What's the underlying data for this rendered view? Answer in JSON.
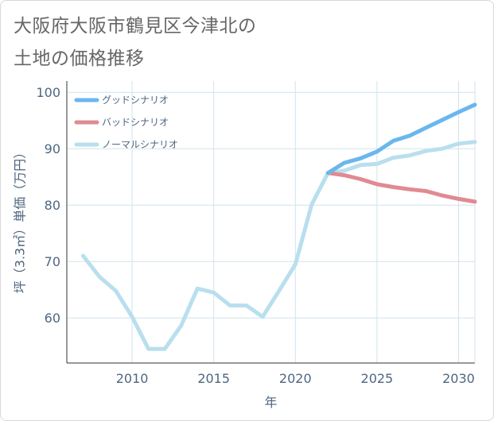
{
  "title_lines": [
    "大阪府大阪市鶴見区今津北の",
    "土地の価格推移"
  ],
  "chart_data": {
    "type": "line",
    "title": "大阪府大阪市鶴見区今津北の土地の価格推移",
    "xlabel": "年",
    "ylabel": "坪（3.3㎡）単価（万円）",
    "xlim": [
      2006,
      2031
    ],
    "ylim": [
      52,
      102
    ],
    "xticks": [
      2010,
      2015,
      2020,
      2025,
      2030
    ],
    "yticks": [
      60,
      70,
      80,
      90,
      100
    ],
    "grid": true,
    "legend_position": "top-left",
    "series": [
      {
        "name": "グッドシナリオ",
        "color": "#6ab7ee",
        "x": [
          2022,
          2023,
          2024,
          2025,
          2026,
          2027,
          2028,
          2029,
          2030,
          2031
        ],
        "y": [
          85.7,
          87.5,
          88.3,
          89.5,
          91.4,
          92.3,
          93.7,
          95.1,
          96.5,
          97.8
        ]
      },
      {
        "name": "バッドシナリオ",
        "color": "#e08a92",
        "x": [
          2022,
          2023,
          2024,
          2025,
          2026,
          2027,
          2028,
          2029,
          2030,
          2031
        ],
        "y": [
          85.7,
          85.3,
          84.6,
          83.7,
          83.2,
          82.8,
          82.5,
          81.7,
          81.1,
          80.6
        ]
      },
      {
        "name": "ノーマルシナリオ",
        "color": "#b9dfee",
        "x": [
          2007,
          2008,
          2009,
          2010,
          2011,
          2012,
          2013,
          2014,
          2015,
          2016,
          2017,
          2018,
          2019,
          2020,
          2021,
          2022,
          2023,
          2024,
          2025,
          2026,
          2027,
          2028,
          2029,
          2030,
          2031
        ],
        "y": [
          71.0,
          67.3,
          64.8,
          60.2,
          54.5,
          54.5,
          58.6,
          65.2,
          64.5,
          62.2,
          62.2,
          60.2,
          64.8,
          69.5,
          80.1,
          85.7,
          86.1,
          87.1,
          87.3,
          88.4,
          88.8,
          89.6,
          90.0,
          90.9,
          91.2
        ]
      }
    ]
  }
}
